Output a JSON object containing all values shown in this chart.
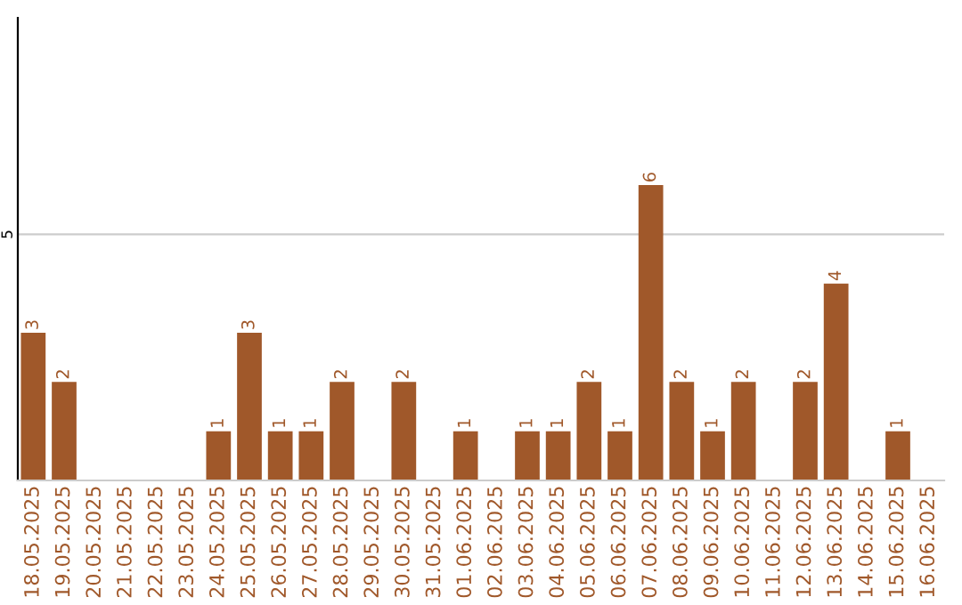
{
  "chart_data": {
    "type": "bar",
    "categories": [
      "18.05.2025",
      "19.05.2025",
      "20.05.2025",
      "21.05.2025",
      "22.05.2025",
      "23.05.2025",
      "24.05.2025",
      "25.05.2025",
      "26.05.2025",
      "27.05.2025",
      "28.05.2025",
      "29.05.2025",
      "30.05.2025",
      "31.05.2025",
      "01.06.2025",
      "02.06.2025",
      "03.06.2025",
      "04.06.2025",
      "05.06.2025",
      "06.06.2025",
      "07.06.2025",
      "08.06.2025",
      "09.06.2025",
      "10.06.2025",
      "11.06.2025",
      "12.06.2025",
      "13.06.2025",
      "14.06.2025",
      "15.06.2025",
      "16.06.2025"
    ],
    "values": [
      3,
      2,
      0,
      0,
      0,
      0,
      1,
      3,
      1,
      1,
      2,
      0,
      2,
      0,
      1,
      0,
      1,
      1,
      2,
      1,
      6,
      2,
      1,
      2,
      0,
      2,
      4,
      0,
      1,
      0
    ],
    "value_labels": [
      "3",
      "2",
      null,
      null,
      null,
      null,
      "1",
      "3",
      "1",
      "1",
      "2",
      null,
      "2",
      null,
      "1",
      null,
      "1",
      "1",
      "2",
      "1",
      "6",
      "2",
      "1",
      "2",
      null,
      "2",
      "4",
      null,
      "1",
      null
    ],
    "color": "#a0582a",
    "ylim": [
      0,
      9.4
    ],
    "yticks": [
      5
    ],
    "grid": "y",
    "legend": false
  }
}
